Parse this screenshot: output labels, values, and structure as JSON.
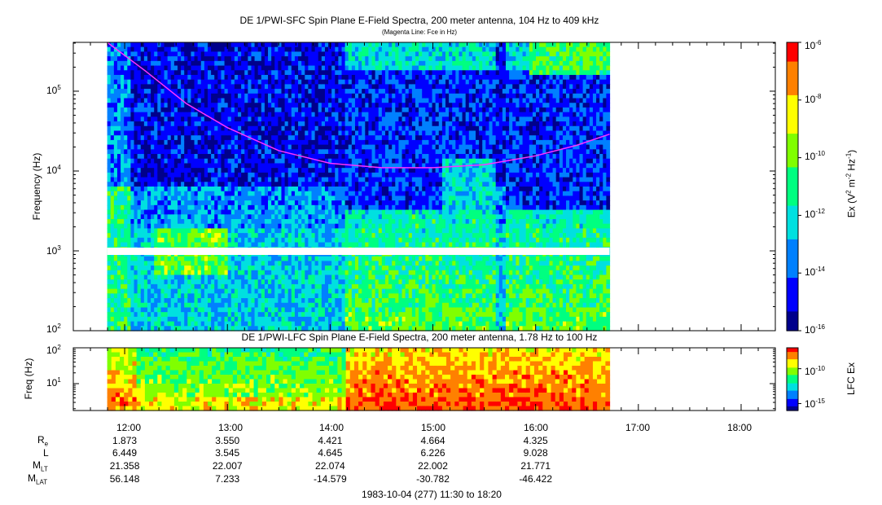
{
  "colors": {
    "fce_line": "#ff33ff",
    "colormap": [
      "#00008b",
      "#0000ff",
      "#0080ff",
      "#00e0e0",
      "#00ff80",
      "#80ff00",
      "#ffff00",
      "#ff8000",
      "#ff0000"
    ]
  },
  "chart_data": [
    {
      "type": "heatmap",
      "title": "DE 1/PWI-SFC  Spin Plane E-Field Spectra, 200 meter antenna, 104 Hz to 409 kHz",
      "subtitle": "(Magenta Line: Fce in Hz)",
      "ylabel": "Frequency (Hz)",
      "yscale": "log",
      "ylim": [
        100,
        409000
      ],
      "yticks": [
        {
          "base": "10",
          "exp": "2",
          "value": 100
        },
        {
          "base": "10",
          "exp": "3",
          "value": 1000
        },
        {
          "base": "10",
          "exp": "4",
          "value": 10000
        },
        {
          "base": "10",
          "exp": "5",
          "value": 100000
        }
      ],
      "xlim_hours": [
        11.5,
        18.333
      ],
      "data_span_hours": [
        11.83,
        16.72
      ],
      "colorbar": {
        "label_base": "Ex (V",
        "label_sup1": "2",
        "label_mid": " m",
        "label_sup2": "-2",
        "label_mid2": " Hz",
        "label_sup3": "-1",
        "label_end": ")",
        "scale": "log",
        "range": [
          1e-16,
          1e-06
        ],
        "ticks": [
          {
            "base": "10",
            "exp": "-6",
            "value": -6
          },
          {
            "base": "10",
            "exp": "-8",
            "value": -8
          },
          {
            "base": "10",
            "exp": "-10",
            "value": -10
          },
          {
            "base": "10",
            "exp": "-12",
            "value": -12
          },
          {
            "base": "10",
            "exp": "-14",
            "value": -14
          },
          {
            "base": "10",
            "exp": "-16",
            "value": -16
          }
        ]
      },
      "fce_line": {
        "name": "Fce",
        "points": [
          [
            11.83,
            409000
          ],
          [
            12.2,
            180000
          ],
          [
            12.6,
            70000
          ],
          [
            13.0,
            35000
          ],
          [
            13.5,
            18000
          ],
          [
            14.0,
            12500
          ],
          [
            14.5,
            11000
          ],
          [
            15.0,
            11000
          ],
          [
            15.5,
            12000
          ],
          [
            16.0,
            15500
          ],
          [
            16.4,
            21000
          ],
          [
            16.72,
            29000
          ]
        ]
      }
    },
    {
      "type": "heatmap",
      "title": "DE 1/PWI-LFC  Spin Plane E-Field Spectra, 200 meter antenna, 1.78 Hz to 100 Hz",
      "ylabel": "Freq (Hz)",
      "yscale": "log",
      "ylim": [
        1.78,
        100
      ],
      "yticks": [
        {
          "base": "10",
          "exp": "1",
          "value": 10
        },
        {
          "base": "10",
          "exp": "2",
          "value": 100
        }
      ],
      "xlim_hours": [
        11.5,
        18.333
      ],
      "data_span_hours": [
        11.83,
        16.72
      ],
      "colorbar": {
        "label": "LFC Ex",
        "scale": "log",
        "range": [
          1e-16,
          1e-07
        ],
        "ticks": [
          {
            "base": "10",
            "exp": "-10",
            "value": -10
          },
          {
            "base": "10",
            "exp": "-15",
            "value": -15
          }
        ]
      }
    }
  ],
  "xaxis": {
    "ticks": [
      {
        "label": "12:00",
        "hour": 12
      },
      {
        "label": "13:00",
        "hour": 13
      },
      {
        "label": "14:00",
        "hour": 14
      },
      {
        "label": "15:00",
        "hour": 15
      },
      {
        "label": "16:00",
        "hour": 16
      },
      {
        "label": "17:00",
        "hour": 17
      },
      {
        "label": "18:00",
        "hour": 18
      }
    ],
    "footer": "1983-10-04 (277) 11:30 to 18:20"
  },
  "ephemeris": {
    "rows": [
      {
        "name": "R",
        "sub": "e",
        "values": [
          "1.873",
          "3.550",
          "4.421",
          "4.664",
          "4.325",
          "",
          ""
        ]
      },
      {
        "name": "L",
        "sub": "",
        "values": [
          "6.449",
          "3.545",
          "4.645",
          "6.226",
          "9.028",
          "",
          ""
        ]
      },
      {
        "name": "M",
        "sub": "LT",
        "values": [
          "21.358",
          "22.007",
          "22.074",
          "22.002",
          "21.771",
          "",
          ""
        ]
      },
      {
        "name": "M",
        "sub": "LAT",
        "values": [
          "56.148",
          "7.233",
          "-14.579",
          "-30.782",
          "-46.422",
          "",
          ""
        ]
      }
    ]
  }
}
